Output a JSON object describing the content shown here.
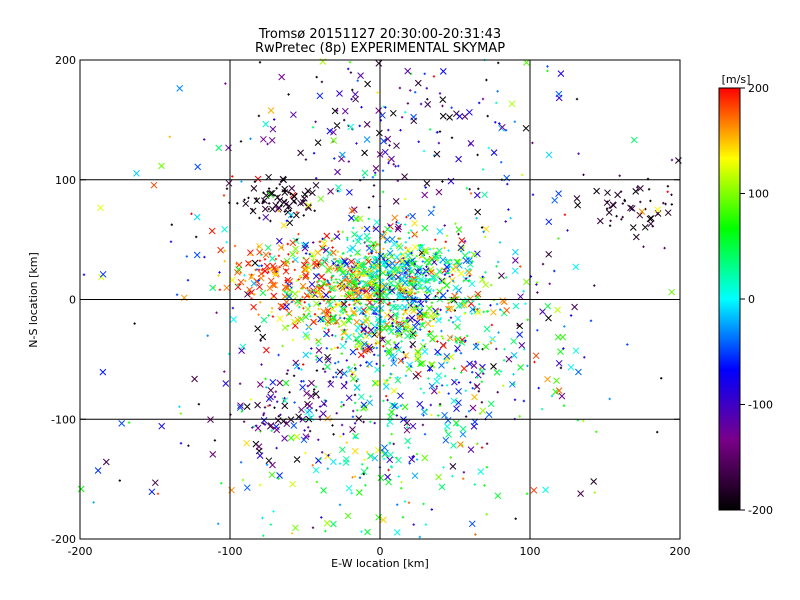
{
  "chart_data": {
    "type": "scatter",
    "title": "Tromsø 20151127 20:30:00-20:31:43",
    "subtitle": "RwPretec (8p) EXPERIMENTAL SKYMAP",
    "xlabel": "E-W location [km]",
    "ylabel": "N-S location [km]",
    "xlim": [
      -200,
      200
    ],
    "ylim": [
      -200,
      200
    ],
    "xticks": [
      "-200",
      "-100",
      "0",
      "100",
      "200"
    ],
    "yticks": [
      "-200",
      "-100",
      "0",
      "100",
      "200"
    ],
    "grid": true,
    "colorbar": {
      "title": "[m/s]",
      "range": [
        -200,
        200
      ],
      "ticks": [
        "200",
        "100",
        "0",
        "-100",
        "-200"
      ],
      "colormap": [
        "#000000",
        "#7a008a",
        "#0000ff",
        "#00ffff",
        "#00ff00",
        "#ffff00",
        "#ff0000"
      ]
    },
    "markers": [
      "x",
      "+"
    ],
    "point_count": 2400
  }
}
